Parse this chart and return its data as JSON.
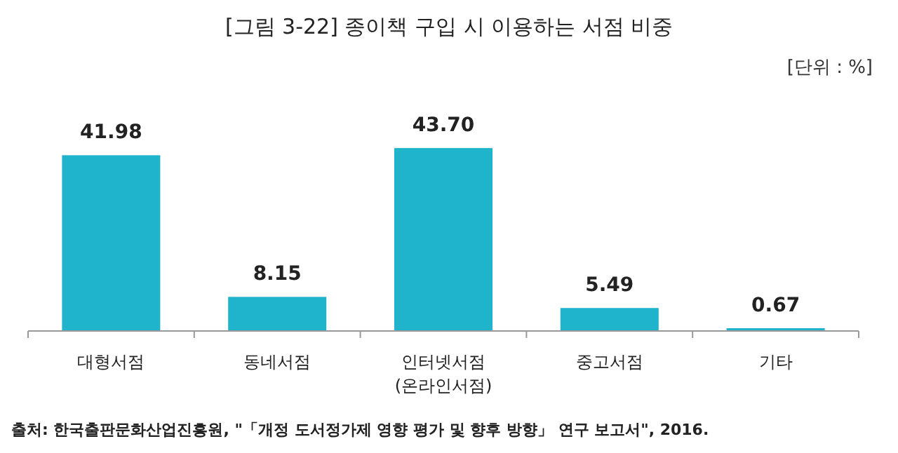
{
  "chart_data": {
    "type": "bar",
    "title": "[그림 3-22] 종이책 구입 시 이용하는 서점 비중",
    "subtitle": "[단위 : %]",
    "categories": [
      "대형서점",
      "동네서점",
      "인터넷서점\n(온라인서점)",
      "중고서점",
      "기타"
    ],
    "values": [
      41.98,
      8.15,
      43.7,
      5.49,
      0.67
    ],
    "color": "#1fb4cc",
    "data_labels": true,
    "value_labels": [
      "41.98",
      "8.15",
      "43.70",
      "5.49",
      "0.67"
    ],
    "annotations": [
      "출처: 한국출판문화산업진흥원, \"「개정 도서정가제 영향 평가 및 향후 방향」 연구 보고서\", 2016."
    ]
  }
}
